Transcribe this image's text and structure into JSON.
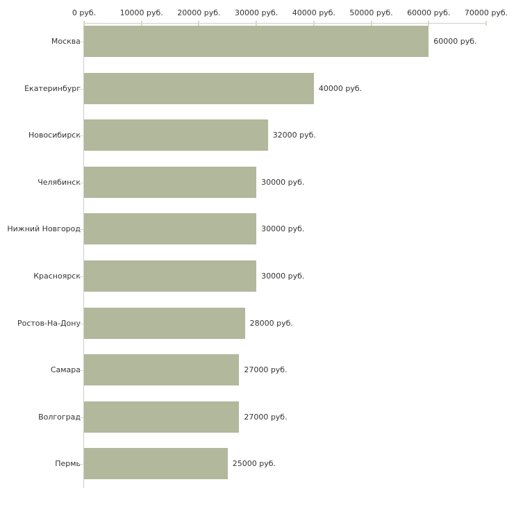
{
  "chart_data": {
    "type": "bar",
    "orientation": "horizontal",
    "title": "",
    "xlabel": "",
    "ylabel": "",
    "unit": "руб.",
    "categories": [
      "Москва",
      "Екатеринбург",
      "Новосибирск",
      "Челябинск",
      "Нижний Новгород",
      "Красноярск",
      "Ростов-На-Дону",
      "Самара",
      "Волгоград",
      "Пермь"
    ],
    "values": [
      60000,
      40000,
      32000,
      30000,
      30000,
      30000,
      28000,
      27000,
      27000,
      25000
    ],
    "value_labels": [
      "60000 руб.",
      "40000 руб.",
      "32000 руб.",
      "30000 руб.",
      "30000 руб.",
      "30000 руб.",
      "28000 руб.",
      "27000 руб.",
      "27000 руб.",
      "25000 руб."
    ],
    "x_ticks": [
      0,
      10000,
      20000,
      30000,
      40000,
      50000,
      60000,
      70000
    ],
    "x_tick_labels": [
      "0 руб.",
      "10000 руб.",
      "20000 руб.",
      "30000 руб.",
      "40000 руб.",
      "50000 руб.",
      "60000 руб.",
      "70000 руб."
    ],
    "xlim": [
      0,
      70000
    ],
    "grid": false,
    "legend": "none",
    "colors": {
      "bar": "#b2b89b",
      "axis_line": "#cccccc",
      "tick": "#d8dbc0",
      "text": "#333333",
      "background": "#ffffff"
    }
  }
}
